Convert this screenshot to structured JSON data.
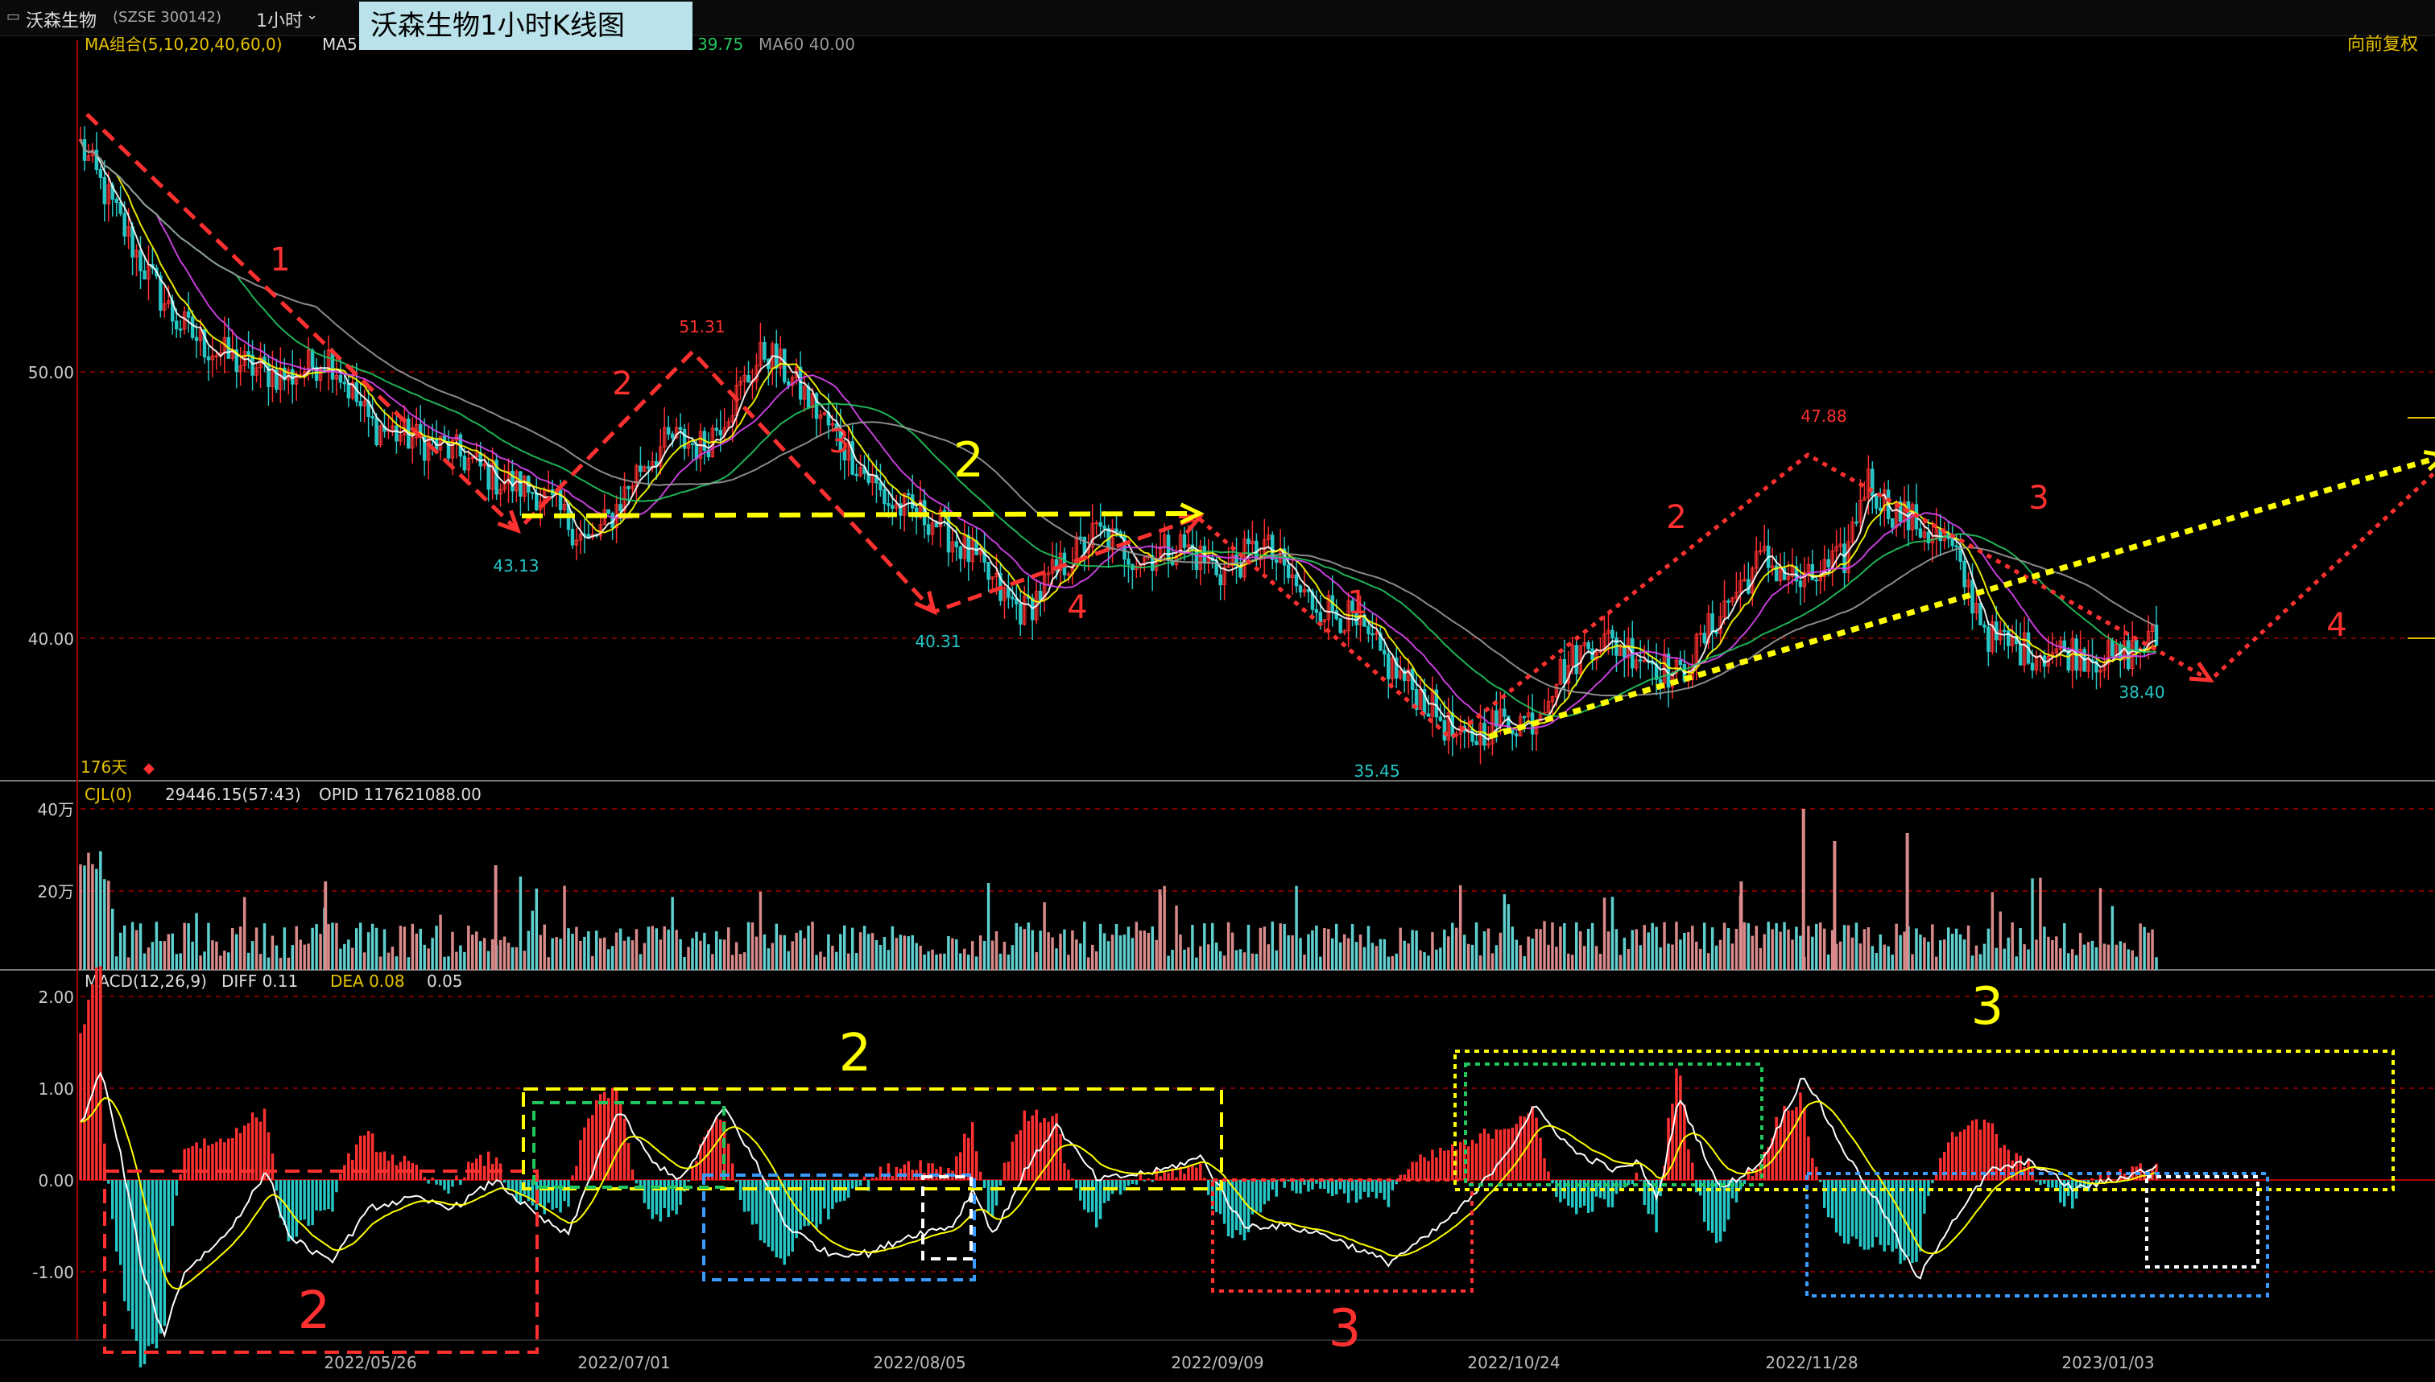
{
  "header": {
    "stock_name": "沃森生物",
    "stock_code": "(SZSE 300142)",
    "period": "1小时",
    "title": "沃森生物1小时K线图",
    "adjust": "向前复权"
  },
  "indicators": {
    "ma_label": "MA组合(5,10,20,40,60,0)",
    "ma_prefix": "MA5",
    "ma_partial": "39.75",
    "ma60": "MA60 40.00",
    "days": "176天",
    "vol_label": "CJL(0)",
    "vol_value": "29446.15(57:43)",
    "opid": "OPID 117621088.00",
    "macd_label": "MACD(12,26,9)",
    "diff": "DIFF 0.11",
    "dea": "DEA 0.08",
    "macd_value": "0.05"
  },
  "colors": {
    "up": "#ff3030",
    "down": "#26c6c6",
    "yellow": "#ffff00",
    "white": "#ffffff",
    "green": "#22c55e",
    "magenta": "#d946ef",
    "blue": "#3b9bff",
    "grid": "#6b0000",
    "axis": "#cc0000"
  },
  "chart_data": [
    {
      "type": "line",
      "name": "price",
      "ylim": [
        35,
        61
      ],
      "y_ticks": [
        "50.00",
        "40.00"
      ],
      "x_ticks": [
        "2022/05/26",
        "2022/07/01",
        "2022/08/05",
        "2022/09/09",
        "2022/10/24",
        "2022/11/28",
        "2023/01/03"
      ],
      "x_tick_pos": [
        0.124,
        0.268,
        0.412,
        0.556,
        0.7,
        0.844,
        0.988
      ],
      "close_path": [
        [
          0.0,
          58.5
        ],
        [
          0.01,
          57
        ],
        [
          0.03,
          54
        ],
        [
          0.045,
          52
        ],
        [
          0.06,
          51
        ],
        [
          0.08,
          50.2
        ],
        [
          0.1,
          49.8
        ],
        [
          0.12,
          50.6
        ],
        [
          0.14,
          48
        ],
        [
          0.16,
          47.5
        ],
        [
          0.18,
          47
        ],
        [
          0.2,
          46
        ],
        [
          0.22,
          45.5
        ],
        [
          0.23,
          44.8
        ],
        [
          0.245,
          43.5
        ],
        [
          0.255,
          44.5
        ],
        [
          0.27,
          46.5
        ],
        [
          0.285,
          47.5
        ],
        [
          0.3,
          47.2
        ],
        [
          0.315,
          49
        ],
        [
          0.33,
          50.8
        ],
        [
          0.345,
          49.5
        ],
        [
          0.36,
          48
        ],
        [
          0.375,
          46.5
        ],
        [
          0.39,
          45
        ],
        [
          0.41,
          44.5
        ],
        [
          0.43,
          43
        ],
        [
          0.445,
          41.5
        ],
        [
          0.455,
          41
        ],
        [
          0.47,
          42.5
        ],
        [
          0.49,
          44
        ],
        [
          0.51,
          43
        ],
        [
          0.53,
          43.5
        ],
        [
          0.55,
          42.5
        ],
        [
          0.57,
          43.5
        ],
        [
          0.59,
          41.5
        ],
        [
          0.61,
          40.8
        ],
        [
          0.63,
          39
        ],
        [
          0.65,
          37.5
        ],
        [
          0.665,
          36
        ],
        [
          0.68,
          36.8
        ],
        [
          0.7,
          37
        ],
        [
          0.71,
          38.5
        ],
        [
          0.73,
          40
        ],
        [
          0.75,
          39.5
        ],
        [
          0.77,
          38.5
        ],
        [
          0.79,
          41
        ],
        [
          0.81,
          43
        ],
        [
          0.83,
          42
        ],
        [
          0.85,
          43
        ],
        [
          0.86,
          46
        ],
        [
          0.87,
          45
        ],
        [
          0.89,
          44
        ],
        [
          0.9,
          43.5
        ],
        [
          0.92,
          40
        ],
        [
          0.94,
          39.5
        ],
        [
          0.96,
          39.5
        ],
        [
          0.98,
          39.2
        ],
        [
          1.0,
          40
        ]
      ],
      "annotations": {
        "highs": [
          "51.31",
          "47.88"
        ],
        "lows": [
          "43.13",
          "40.31",
          "35.45",
          "38.40"
        ],
        "wave_labels": [
          "1",
          "2",
          "3",
          "4",
          "2",
          "1",
          "2",
          "3",
          "4"
        ]
      }
    },
    {
      "type": "bar",
      "name": "volume",
      "y_ticks": [
        "40万",
        "20万"
      ],
      "ylim": [
        0,
        45
      ]
    },
    {
      "type": "bar",
      "name": "MACD",
      "y_ticks": [
        "2.00",
        "1.00",
        "0.00",
        "-1.00"
      ],
      "ylim": [
        -1.9,
        2.2
      ],
      "diff_path": [
        [
          0.0,
          0.6
        ],
        [
          0.01,
          1.2
        ],
        [
          0.02,
          0.2
        ],
        [
          0.03,
          -1.0
        ],
        [
          0.04,
          -1.7
        ],
        [
          0.05,
          -1.0
        ],
        [
          0.07,
          -0.6
        ],
        [
          0.09,
          0.1
        ],
        [
          0.1,
          -0.6
        ],
        [
          0.12,
          -0.9
        ],
        [
          0.14,
          -0.3
        ],
        [
          0.16,
          -0.2
        ],
        [
          0.18,
          -0.3
        ],
        [
          0.2,
          0.0
        ],
        [
          0.22,
          -0.4
        ],
        [
          0.235,
          -0.6
        ],
        [
          0.25,
          0.3
        ],
        [
          0.26,
          0.75
        ],
        [
          0.275,
          0.2
        ],
        [
          0.29,
          0.0
        ],
        [
          0.31,
          0.8
        ],
        [
          0.325,
          0.2
        ],
        [
          0.34,
          -0.5
        ],
        [
          0.36,
          -0.8
        ],
        [
          0.38,
          -0.8
        ],
        [
          0.4,
          -0.6
        ],
        [
          0.42,
          -0.5
        ],
        [
          0.43,
          -0.1
        ],
        [
          0.44,
          -0.6
        ],
        [
          0.455,
          0.1
        ],
        [
          0.47,
          0.6
        ],
        [
          0.49,
          0.0
        ],
        [
          0.52,
          0.1
        ],
        [
          0.54,
          0.25
        ],
        [
          0.56,
          -0.5
        ],
        [
          0.58,
          -0.5
        ],
        [
          0.6,
          -0.6
        ],
        [
          0.63,
          -0.9
        ],
        [
          0.65,
          -0.6
        ],
        [
          0.67,
          -0.2
        ],
        [
          0.69,
          0.4
        ],
        [
          0.7,
          0.8
        ],
        [
          0.72,
          0.3
        ],
        [
          0.74,
          0.1
        ],
        [
          0.75,
          0.2
        ],
        [
          0.76,
          -0.2
        ],
        [
          0.77,
          0.9
        ],
        [
          0.79,
          -0.1
        ],
        [
          0.81,
          0.2
        ],
        [
          0.83,
          1.15
        ],
        [
          0.85,
          0.3
        ],
        [
          0.87,
          -0.4
        ],
        [
          0.885,
          -1.1
        ],
        [
          0.9,
          -0.5
        ],
        [
          0.92,
          0.1
        ],
        [
          0.94,
          0.2
        ],
        [
          0.96,
          -0.1
        ],
        [
          0.98,
          0.0
        ],
        [
          1.0,
          0.15
        ]
      ]
    }
  ],
  "drawings": {
    "red_boxes": [
      "2",
      "3"
    ],
    "yellow_boxes": [
      "2",
      "3"
    ]
  }
}
